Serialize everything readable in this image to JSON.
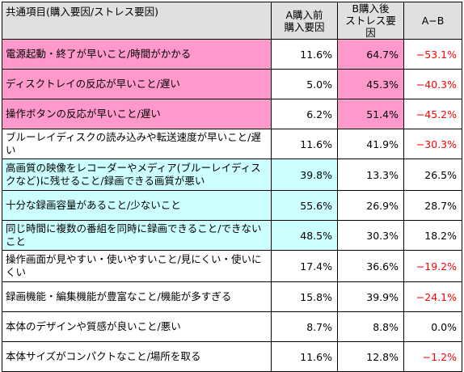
{
  "header": {
    "item": "共通項目(購入要因/ストレス要因)",
    "col_a_line1": "A購入前",
    "col_a_line2": "購入要因",
    "col_b_line1": "B購入後",
    "col_b_line2": "ストレス要因",
    "col_diff": "A−B"
  },
  "colors": {
    "pink": "#ff99cc",
    "cyan": "#ccffff",
    "header_gray": "#e0e0e0",
    "negative": "#ff0000"
  },
  "rows": [
    {
      "label": "電源起動・終了が早いこと/時間がかかる",
      "a": "11.6%",
      "b": "64.7%",
      "diff": "−53.1%",
      "label_bg": "pink",
      "b_bg": "pink",
      "diff_neg": true
    },
    {
      "label": "ディスクトレイの反応が早いこと/遅い",
      "a": "5.0%",
      "b": "45.3%",
      "diff": "−40.3%",
      "label_bg": "pink",
      "b_bg": "pink",
      "diff_neg": true
    },
    {
      "label": "操作ボタンの反応が早いこと/遅い",
      "a": "6.2%",
      "b": "51.4%",
      "diff": "−45.2%",
      "label_bg": "pink",
      "b_bg": "pink",
      "diff_neg": true
    },
    {
      "label": "ブルーレイディスクの読み込みや転送速度が早いこと/遅い",
      "a": "11.6%",
      "b": "41.9%",
      "diff": "−30.3%",
      "label_bg": "",
      "b_bg": "",
      "diff_neg": true
    },
    {
      "label": "高画質の映像をレコーダーやメディア(ブルーレイディスクなど)に残せること/録画できる画質が悪い",
      "a": "39.8%",
      "b": "13.3%",
      "diff": "26.5%",
      "label_bg": "cyan",
      "a_bg": "cyan",
      "diff_neg": false
    },
    {
      "label": "十分な録画容量があること/少ないこと",
      "a": "55.6%",
      "b": "26.9%",
      "diff": "28.7%",
      "label_bg": "cyan",
      "a_bg": "cyan",
      "diff_neg": false
    },
    {
      "label": "同じ時間に複数の番組を同時に録画できること/できないこと",
      "a": "48.5%",
      "b": "30.3%",
      "diff": "18.2%",
      "label_bg": "cyan",
      "a_bg": "cyan",
      "diff_neg": false
    },
    {
      "label": "操作画面が見やすい・使いやすいこと/見にくい・使いにくい",
      "a": "17.4%",
      "b": "36.6%",
      "diff": "−19.2%",
      "label_bg": "",
      "diff_neg": true
    },
    {
      "label": "録画機能・編集機能が豊富なこと/機能が多すぎる",
      "a": "15.8%",
      "b": "39.9%",
      "diff": "−24.1%",
      "label_bg": "",
      "diff_neg": true
    },
    {
      "label": "本体のデザインや質感が良いこと/悪い",
      "a": "8.7%",
      "b": "8.8%",
      "diff": "0.0%",
      "label_bg": "",
      "diff_neg": false
    },
    {
      "label": "本体サイズがコンパクトなこと/場所を取る",
      "a": "11.6%",
      "b": "12.8%",
      "diff": "−1.2%",
      "label_bg": "",
      "diff_neg": true
    }
  ]
}
